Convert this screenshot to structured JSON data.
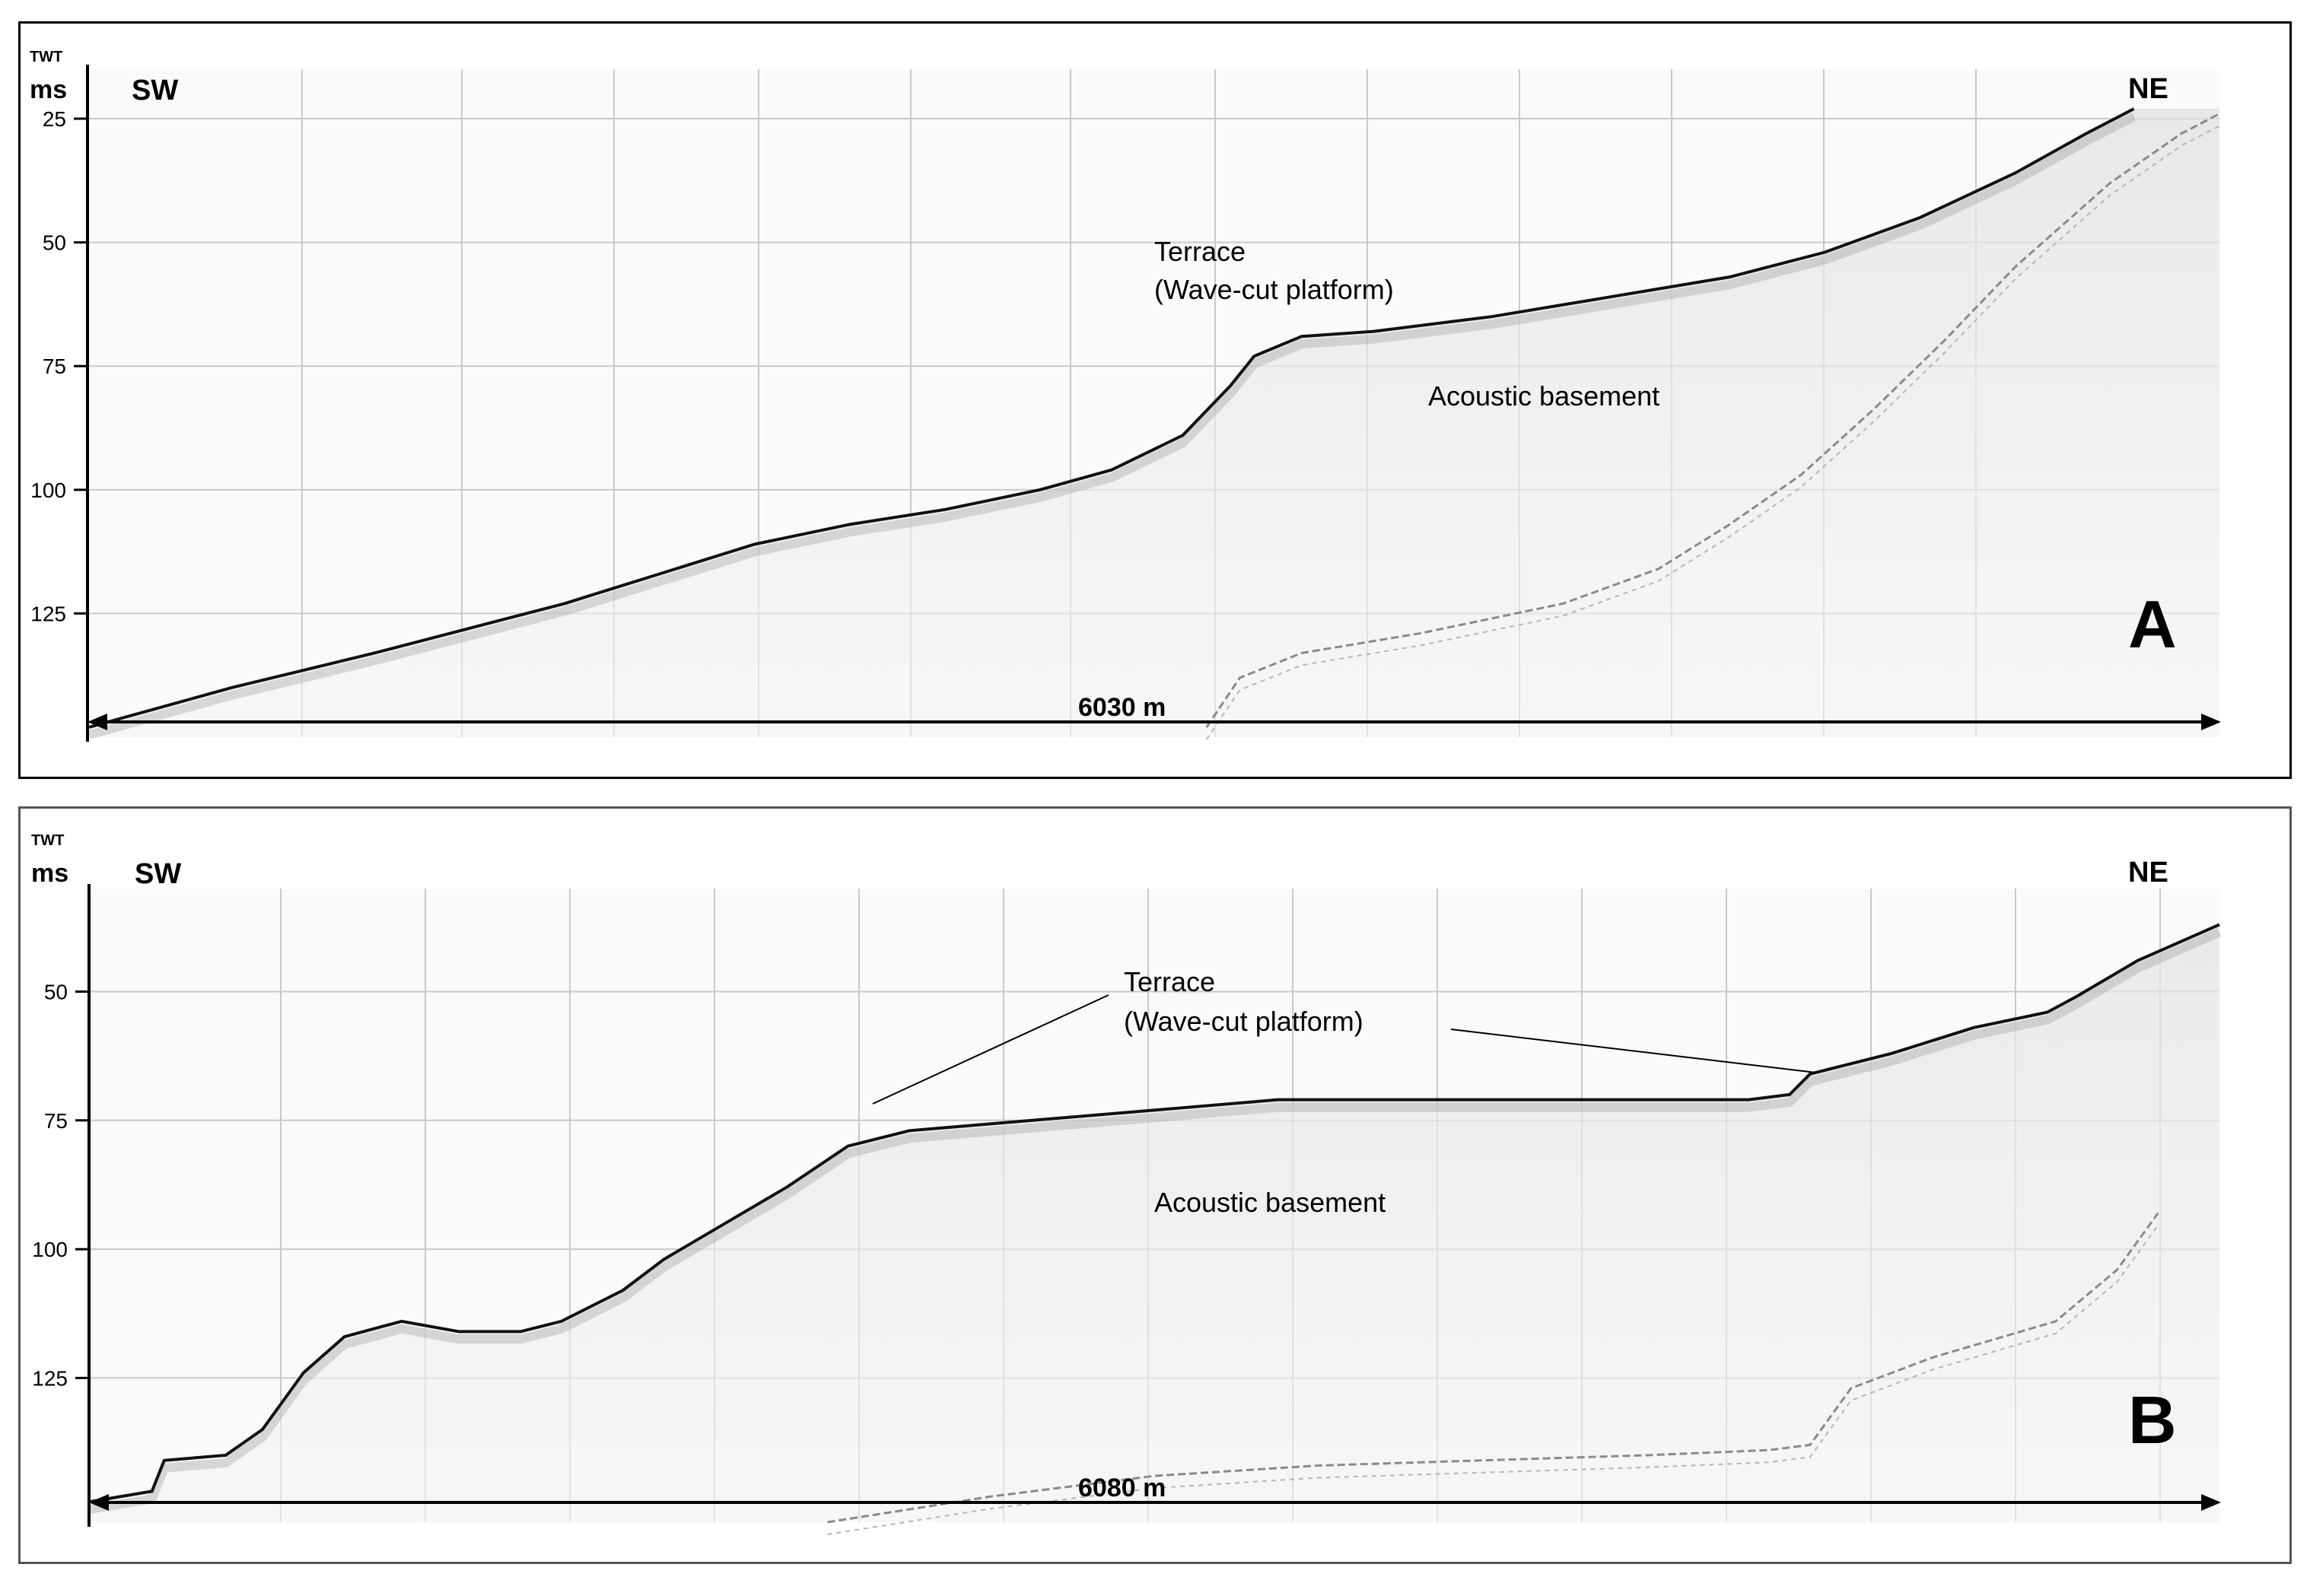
{
  "panels": [
    {
      "id": "A",
      "axis_title_small": "TWT",
      "axis_unit": "ms",
      "left_direction": "SW",
      "right_direction": "NE",
      "y_ticks": [
        "25",
        "50",
        "75",
        "100",
        "125"
      ],
      "distance": "6030 m",
      "panel_letter": "A",
      "annotations": {
        "terrace": "Terrace",
        "platform": "(Wave-cut platform)",
        "basement": "Acoustic basement"
      },
      "seafloor_profile": [
        [
          0,
          148
        ],
        [
          300,
          140
        ],
        [
          600,
          133
        ],
        [
          800,
          128
        ],
        [
          1000,
          123
        ],
        [
          1200,
          117
        ],
        [
          1400,
          111
        ],
        [
          1600,
          107
        ],
        [
          1800,
          104
        ],
        [
          2000,
          100
        ],
        [
          2150,
          96
        ],
        [
          2300,
          89
        ],
        [
          2400,
          79
        ],
        [
          2450,
          73
        ],
        [
          2550,
          69
        ],
        [
          2700,
          68
        ],
        [
          2950,
          65
        ],
        [
          3200,
          61
        ],
        [
          3450,
          57
        ],
        [
          3650,
          52
        ],
        [
          3850,
          45
        ],
        [
          4050,
          36
        ],
        [
          4200,
          28
        ],
        [
          4300,
          23
        ]
      ],
      "subbottom_reflector": [
        [
          2350,
          148
        ],
        [
          2420,
          138
        ],
        [
          2550,
          133
        ],
        [
          2800,
          129
        ],
        [
          3100,
          123
        ],
        [
          3300,
          116
        ],
        [
          3450,
          107
        ],
        [
          3600,
          97
        ],
        [
          3750,
          84
        ],
        [
          3900,
          70
        ],
        [
          4050,
          55
        ],
        [
          4250,
          38
        ],
        [
          4400,
          28
        ],
        [
          4480,
          24
        ]
      ],
      "distance_extent_m": 6030
    },
    {
      "id": "B",
      "axis_title_small": "TWT",
      "axis_unit": "ms",
      "left_direction": "SW",
      "right_direction": "NE",
      "y_ticks": [
        "50",
        "75",
        "100",
        "125"
      ],
      "distance": "6080 m",
      "panel_letter": "B",
      "annotations": {
        "terrace": "Terrace",
        "platform": "(Wave-cut platform)",
        "basement": "Acoustic basement"
      },
      "seafloor_profile": [
        [
          0,
          149
        ],
        [
          150,
          147
        ],
        [
          180,
          141
        ],
        [
          330,
          140
        ],
        [
          420,
          135
        ],
        [
          520,
          124
        ],
        [
          620,
          117
        ],
        [
          760,
          114
        ],
        [
          900,
          116
        ],
        [
          1050,
          116
        ],
        [
          1150,
          114
        ],
        [
          1300,
          108
        ],
        [
          1400,
          102
        ],
        [
          1550,
          95
        ],
        [
          1700,
          88
        ],
        [
          1850,
          80
        ],
        [
          2000,
          77
        ],
        [
          2300,
          75
        ],
        [
          2600,
          73
        ],
        [
          2900,
          71
        ],
        [
          3300,
          71
        ],
        [
          3600,
          71
        ],
        [
          3850,
          71
        ],
        [
          4050,
          71
        ],
        [
          4150,
          70
        ],
        [
          4200,
          66
        ],
        [
          4400,
          62
        ],
        [
          4600,
          57
        ],
        [
          4780,
          54
        ],
        [
          4850,
          51
        ],
        [
          5000,
          44
        ],
        [
          5200,
          37
        ]
      ],
      "subbottom_reflector": [
        [
          1800,
          153
        ],
        [
          2200,
          148
        ],
        [
          2600,
          144
        ],
        [
          3000,
          142
        ],
        [
          3400,
          141
        ],
        [
          3800,
          140
        ],
        [
          4100,
          139
        ],
        [
          4200,
          138
        ],
        [
          4300,
          127
        ],
        [
          4500,
          121
        ],
        [
          4800,
          114
        ],
        [
          4950,
          104
        ],
        [
          5050,
          93
        ]
      ],
      "distance_extent_m": 6080
    }
  ]
}
